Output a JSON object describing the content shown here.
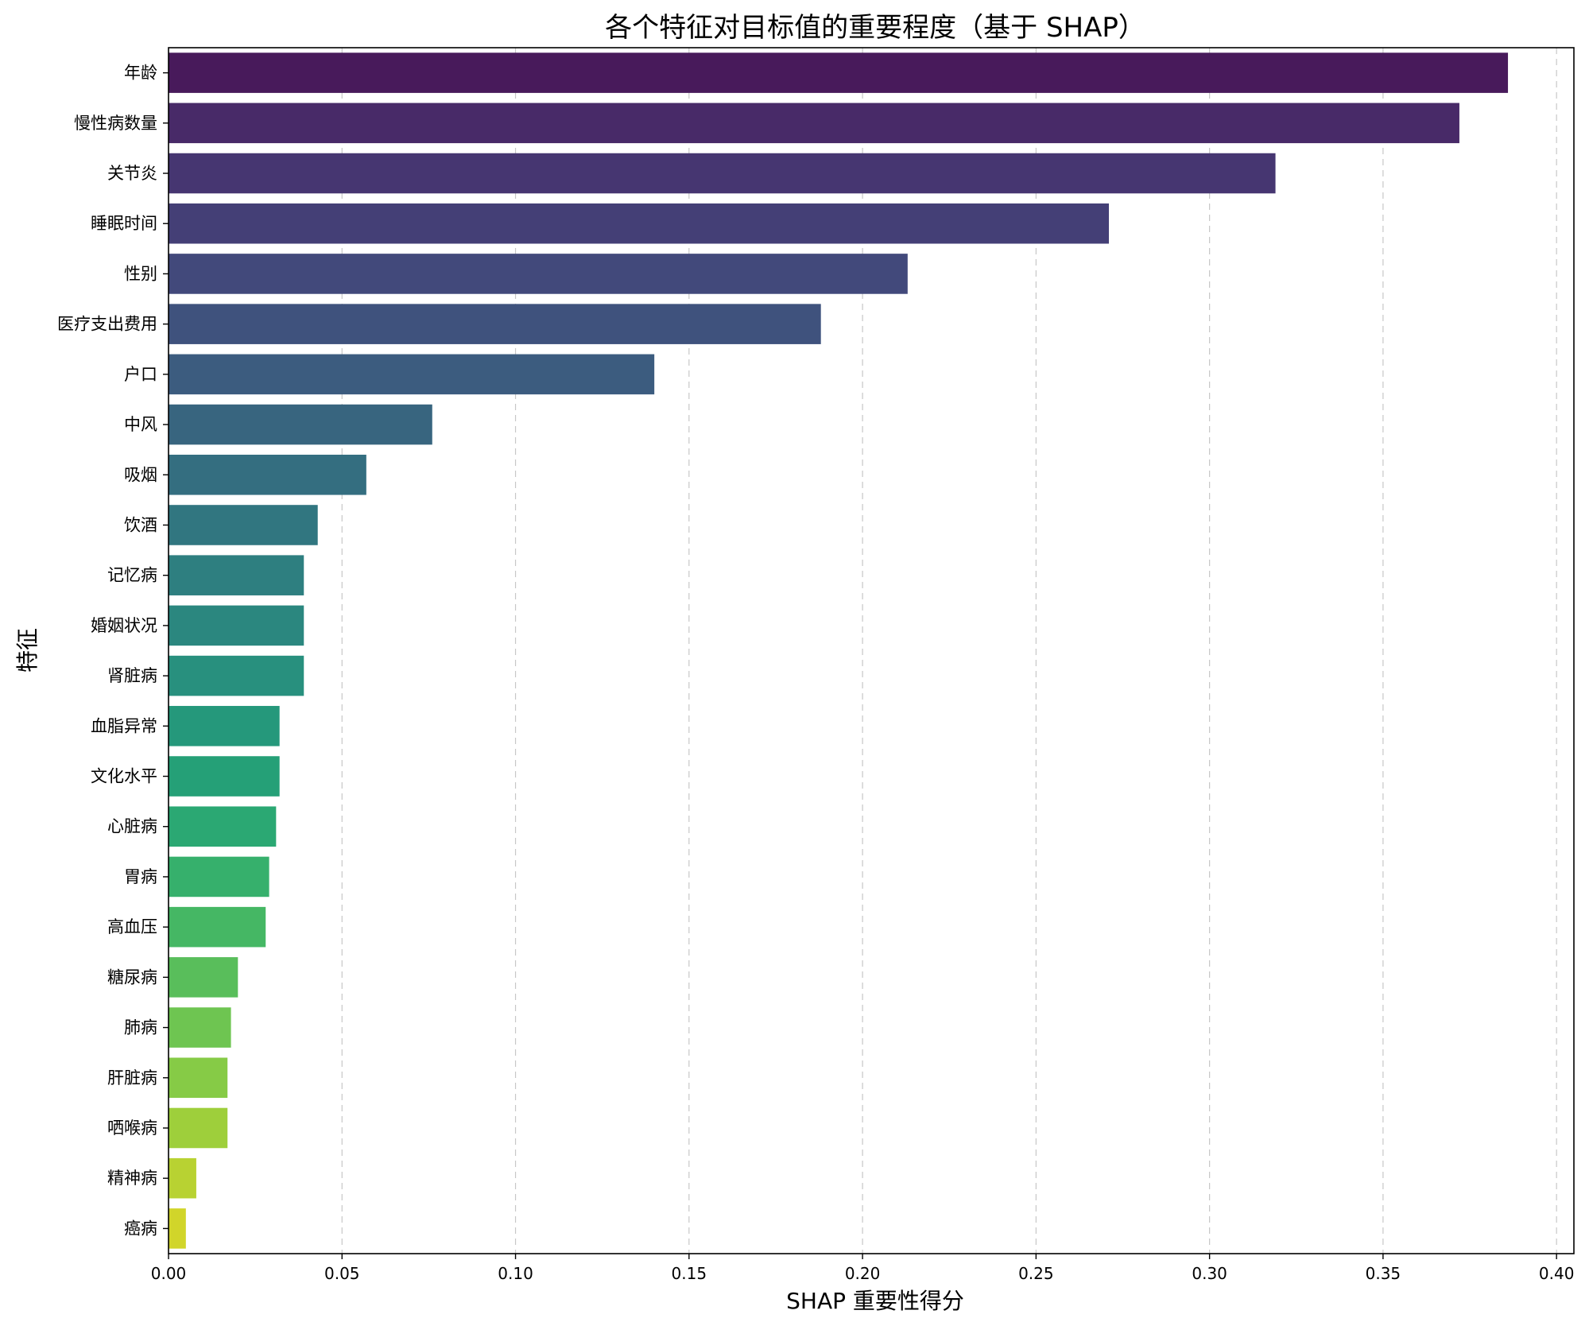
{
  "chart_data": {
    "type": "bar",
    "orientation": "horizontal",
    "title": "各个特征对目标值的重要程度（基于 SHAP）",
    "xlabel": "SHAP 重要性得分",
    "ylabel": "特征",
    "xlim": [
      0,
      0.405
    ],
    "xticks": [
      0.0,
      0.05,
      0.1,
      0.15,
      0.2,
      0.25,
      0.3,
      0.35,
      0.4
    ],
    "xtick_labels": [
      "0.00",
      "0.05",
      "0.10",
      "0.15",
      "0.20",
      "0.25",
      "0.30",
      "0.35",
      "0.40"
    ],
    "grid": "x-dashed",
    "categories": [
      "年龄",
      "慢性病数量",
      "关节炎",
      "睡眠时间",
      "性别",
      "医疗支出费用",
      "户口",
      "中风",
      "吸烟",
      "饮酒",
      "记忆病",
      "婚姻状况",
      "肾脏病",
      "血脂异常",
      "文化水平",
      "心脏病",
      "胃病",
      "高血压",
      "糖尿病",
      "肺病",
      "肝脏病",
      "哂喉病",
      "精神病",
      "癌病"
    ],
    "values": [
      0.386,
      0.372,
      0.319,
      0.271,
      0.213,
      0.188,
      0.14,
      0.076,
      0.057,
      0.043,
      0.039,
      0.039,
      0.039,
      0.032,
      0.032,
      0.031,
      0.029,
      0.028,
      0.02,
      0.018,
      0.017,
      0.017,
      0.008,
      0.005
    ],
    "colors": [
      "#481a5b",
      "#482a68",
      "#463671",
      "#443f76",
      "#42497b",
      "#3f527d",
      "#3c5c7f",
      "#38657f",
      "#346e80",
      "#317680",
      "#2e7f80",
      "#2b877f",
      "#28907e",
      "#25987b",
      "#25a077",
      "#2ba873",
      "#36b06c",
      "#45b764",
      "#59be5b",
      "#6ec551",
      "#86cb46",
      "#9ecf3b",
      "#b8d232",
      "#d1d52a"
    ]
  }
}
